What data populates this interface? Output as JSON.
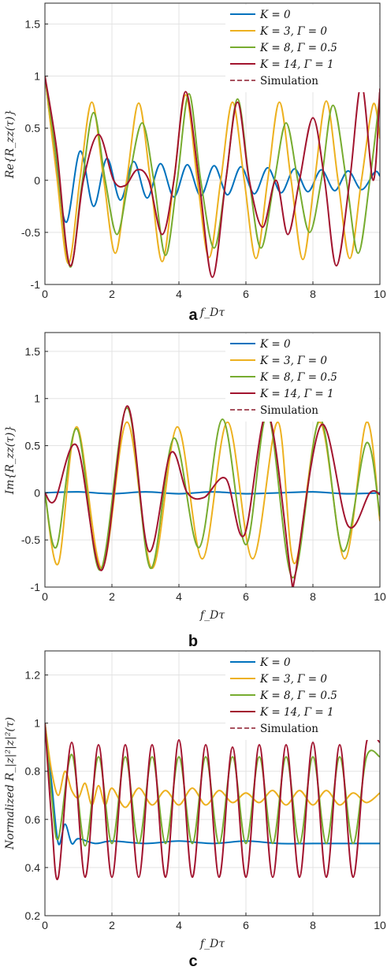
{
  "chart_data": [
    {
      "type": "line",
      "panel_label": "a",
      "xlabel": "f_Dτ",
      "ylabel": "Re{R_zz(τ)}",
      "xlim": [
        0,
        10
      ],
      "ylim": [
        -1,
        1.7
      ],
      "x_ticks": [
        0,
        2,
        4,
        6,
        8,
        10
      ],
      "y_ticks": [
        -1,
        -0.5,
        0,
        0.5,
        1,
        1.5
      ],
      "grid": true,
      "legend_position": "top-right",
      "legend": [
        "K = 0",
        "K = 3, Γ = 0",
        "K = 8, Γ = 0.5",
        "K = 14, Γ = 1",
        "Simulation"
      ],
      "series": [
        {
          "name": "K = 0",
          "color": "#0072BD",
          "x": [
            0,
            0.35,
            0.65,
            1.05,
            1.45,
            1.85,
            2.25,
            2.65,
            3.05,
            3.45,
            3.85,
            4.25,
            4.65,
            5.05,
            5.45,
            5.85,
            6.25,
            6.65,
            7.05,
            7.45,
            7.85,
            8.25,
            8.65,
            9.05,
            9.45,
            9.85,
            10
          ],
          "y": [
            1,
            0.1,
            -0.4,
            0.28,
            -0.25,
            0.21,
            -0.19,
            0.18,
            -0.17,
            0.16,
            -0.16,
            0.15,
            -0.15,
            0.14,
            -0.14,
            0.13,
            -0.13,
            0.12,
            -0.12,
            0.11,
            -0.11,
            0.1,
            -0.1,
            0.09,
            -0.09,
            0.08,
            0.04
          ]
        },
        {
          "name": "K = 3, Γ = 0",
          "color": "#EDB120",
          "x": [
            0,
            0.35,
            0.7,
            1.05,
            1.4,
            1.75,
            2.1,
            2.45,
            2.8,
            3.15,
            3.5,
            3.85,
            4.2,
            4.55,
            4.9,
            5.25,
            5.6,
            5.95,
            6.3,
            6.65,
            7.0,
            7.35,
            7.7,
            8.05,
            8.4,
            8.75,
            9.1,
            9.45,
            9.8,
            10
          ],
          "y": [
            1,
            0.05,
            -0.8,
            0.02,
            0.75,
            0.02,
            -0.7,
            0.02,
            0.74,
            0.0,
            -0.78,
            0.0,
            0.82,
            0.0,
            -0.74,
            0.0,
            0.75,
            0.0,
            -0.75,
            0.0,
            0.75,
            0.0,
            -0.76,
            0.0,
            0.76,
            0.0,
            -0.75,
            0.0,
            0.73,
            0.4
          ]
        },
        {
          "name": "K = 8, Γ = 0.5",
          "color": "#77AC30",
          "x": [
            0,
            0.35,
            0.75,
            1.1,
            1.45,
            1.8,
            2.15,
            2.5,
            2.9,
            3.25,
            3.6,
            3.95,
            4.3,
            4.65,
            5.05,
            5.4,
            5.75,
            6.1,
            6.45,
            6.85,
            7.2,
            7.55,
            7.9,
            8.25,
            8.6,
            9.0,
            9.35,
            9.7,
            10
          ],
          "y": [
            1,
            0.2,
            -0.83,
            -0.05,
            0.65,
            0.0,
            -0.52,
            0.0,
            0.55,
            0.0,
            -0.72,
            0.0,
            0.83,
            0.0,
            -0.65,
            0.0,
            0.78,
            0.0,
            -0.65,
            0.0,
            0.55,
            0.0,
            -0.5,
            0.0,
            0.72,
            0.0,
            -0.7,
            0.0,
            0.82
          ]
        },
        {
          "name": "K = 14, Γ = 1",
          "color": "#A2142F",
          "x": [
            0,
            0.35,
            0.75,
            1.15,
            1.6,
            2.05,
            2.4,
            2.75,
            3.1,
            3.5,
            3.85,
            4.2,
            4.6,
            5.0,
            5.4,
            5.75,
            6.1,
            6.5,
            6.9,
            7.25,
            7.6,
            8.0,
            8.35,
            8.7,
            9.1,
            9.45,
            9.8,
            10
          ],
          "y": [
            1,
            0.3,
            -0.82,
            0.0,
            0.44,
            0.0,
            -0.05,
            0.1,
            0.0,
            -0.52,
            0.0,
            0.85,
            0.0,
            -0.93,
            0.0,
            0.75,
            0.0,
            -0.45,
            0.0,
            -0.52,
            0.0,
            0.6,
            0.0,
            -0.82,
            0.0,
            0.92,
            0.0,
            0.88
          ]
        }
      ]
    },
    {
      "type": "line",
      "panel_label": "b",
      "xlabel": "f_Dτ",
      "ylabel": "Im{R_zz(τ)}",
      "xlim": [
        0,
        10
      ],
      "ylim": [
        -1,
        1.7
      ],
      "x_ticks": [
        0,
        2,
        4,
        6,
        8,
        10
      ],
      "y_ticks": [
        -1,
        -0.5,
        0,
        0.5,
        1,
        1.5
      ],
      "grid": true,
      "legend_position": "top-right",
      "legend": [
        "K = 0",
        "K = 3, Γ = 0",
        "K = 8, Γ = 0.5",
        "K = 14, Γ = 1",
        "Simulation"
      ],
      "series": [
        {
          "name": "K = 0",
          "color": "#0072BD",
          "x": [
            0,
            1,
            2,
            3,
            4,
            5,
            6,
            7,
            8,
            9,
            10
          ],
          "y": [
            0,
            0.01,
            -0.01,
            0.01,
            -0.01,
            0.01,
            -0.01,
            0.0,
            0.01,
            -0.01,
            0.0
          ]
        },
        {
          "name": "K = 3, Γ = 0",
          "color": "#EDB120",
          "x": [
            0,
            0.4,
            0.95,
            1.7,
            2.45,
            3.2,
            3.95,
            4.7,
            5.45,
            6.2,
            6.95,
            7.45,
            8.2,
            8.95,
            9.6,
            10
          ],
          "y": [
            0,
            -0.75,
            0.7,
            -0.8,
            0.75,
            -0.8,
            0.7,
            -0.7,
            0.75,
            -0.7,
            0.75,
            -0.75,
            0.75,
            -0.7,
            0.75,
            -0.3
          ]
        },
        {
          "name": "K = 8, Γ = 0.5",
          "color": "#77AC30",
          "x": [
            0,
            0.35,
            0.95,
            1.65,
            2.45,
            3.15,
            3.85,
            4.6,
            5.3,
            6.0,
            6.65,
            7.4,
            8.2,
            8.9,
            9.6,
            10
          ],
          "y": [
            0,
            -0.57,
            0.68,
            -0.82,
            0.9,
            -0.8,
            0.58,
            -0.58,
            0.78,
            -0.55,
            0.83,
            -0.9,
            0.78,
            -0.62,
            0.53,
            -0.25
          ]
        },
        {
          "name": "K = 14, Γ = 1",
          "color": "#A2142F",
          "x": [
            0,
            0.3,
            0.95,
            1.7,
            2.45,
            3.1,
            3.75,
            4.25,
            4.75,
            5.4,
            5.95,
            6.65,
            7.35,
            7.45,
            8.25,
            9.05,
            9.7,
            10
          ],
          "y": [
            0,
            -0.08,
            0.5,
            -0.82,
            0.92,
            -0.62,
            0.42,
            0.0,
            -0.05,
            0.15,
            -0.45,
            0.85,
            -0.9,
            -0.92,
            0.72,
            -0.35,
            0.0,
            -0.02
          ]
        }
      ]
    },
    {
      "type": "line",
      "panel_label": "c",
      "xlabel": "f_Dτ",
      "ylabel": "Normalized R_|z|²|z|²(τ)",
      "xlim": [
        0,
        10
      ],
      "ylim": [
        0.2,
        1.3
      ],
      "x_ticks": [
        0,
        2,
        4,
        6,
        8,
        10
      ],
      "y_ticks": [
        0.2,
        0.4,
        0.6,
        0.8,
        1,
        1.2
      ],
      "grid": true,
      "legend_position": "top-right",
      "legend": [
        "K = 0",
        "K = 3, Γ = 0",
        "K = 8, Γ = 0.5",
        "K = 14, Γ = 1",
        "Simulation"
      ],
      "series": [
        {
          "name": "K = 0",
          "color": "#0072BD",
          "x": [
            0,
            0.2,
            0.4,
            0.6,
            0.8,
            1.0,
            1.5,
            2,
            3,
            4,
            5,
            6,
            7,
            8,
            9,
            10
          ],
          "y": [
            1,
            0.75,
            0.5,
            0.58,
            0.5,
            0.52,
            0.5,
            0.51,
            0.5,
            0.51,
            0.5,
            0.51,
            0.5,
            0.5,
            0.5,
            0.5
          ]
        },
        {
          "name": "K = 3, Γ = 0",
          "color": "#EDB120",
          "x": [
            0,
            0.2,
            0.4,
            0.6,
            0.8,
            1.0,
            1.2,
            1.4,
            1.6,
            1.8,
            2.0,
            2.4,
            2.8,
            3.2,
            3.6,
            4.0,
            4.4,
            4.8,
            5.2,
            5.6,
            6.0,
            6.4,
            6.8,
            7.2,
            7.6,
            8.0,
            8.4,
            8.8,
            9.2,
            9.6,
            10
          ],
          "y": [
            1,
            0.8,
            0.7,
            0.8,
            0.72,
            0.69,
            0.75,
            0.66,
            0.74,
            0.66,
            0.73,
            0.65,
            0.73,
            0.66,
            0.72,
            0.66,
            0.73,
            0.66,
            0.72,
            0.67,
            0.71,
            0.67,
            0.72,
            0.66,
            0.72,
            0.66,
            0.72,
            0.66,
            0.71,
            0.67,
            0.71
          ]
        },
        {
          "name": "K = 8, Γ = 0.5",
          "color": "#77AC30",
          "x": [
            0,
            0.2,
            0.4,
            0.8,
            1.2,
            1.6,
            2.0,
            2.4,
            2.8,
            3.2,
            3.6,
            4.0,
            4.4,
            4.8,
            5.2,
            5.6,
            6.0,
            6.4,
            6.8,
            7.2,
            7.6,
            8.0,
            8.4,
            8.8,
            9.2,
            9.6,
            10
          ],
          "y": [
            1,
            0.7,
            0.52,
            0.87,
            0.49,
            0.86,
            0.5,
            0.86,
            0.5,
            0.86,
            0.5,
            0.86,
            0.5,
            0.86,
            0.5,
            0.86,
            0.5,
            0.86,
            0.5,
            0.86,
            0.5,
            0.86,
            0.5,
            0.86,
            0.5,
            0.86,
            0.86
          ]
        },
        {
          "name": "K = 14, Γ = 1",
          "color": "#A2142F",
          "x": [
            0,
            0.2,
            0.4,
            0.8,
            1.2,
            1.6,
            2.0,
            2.4,
            2.8,
            3.2,
            3.6,
            4.0,
            4.4,
            4.8,
            5.2,
            5.6,
            6.0,
            6.4,
            6.8,
            7.2,
            7.6,
            8.0,
            8.4,
            8.8,
            9.2,
            9.6,
            10
          ],
          "y": [
            1,
            0.6,
            0.36,
            0.92,
            0.36,
            0.91,
            0.36,
            0.91,
            0.36,
            0.91,
            0.36,
            0.93,
            0.36,
            0.91,
            0.36,
            0.9,
            0.36,
            0.91,
            0.36,
            0.91,
            0.36,
            0.92,
            0.36,
            0.91,
            0.36,
            0.92,
            0.92
          ]
        }
      ]
    }
  ]
}
